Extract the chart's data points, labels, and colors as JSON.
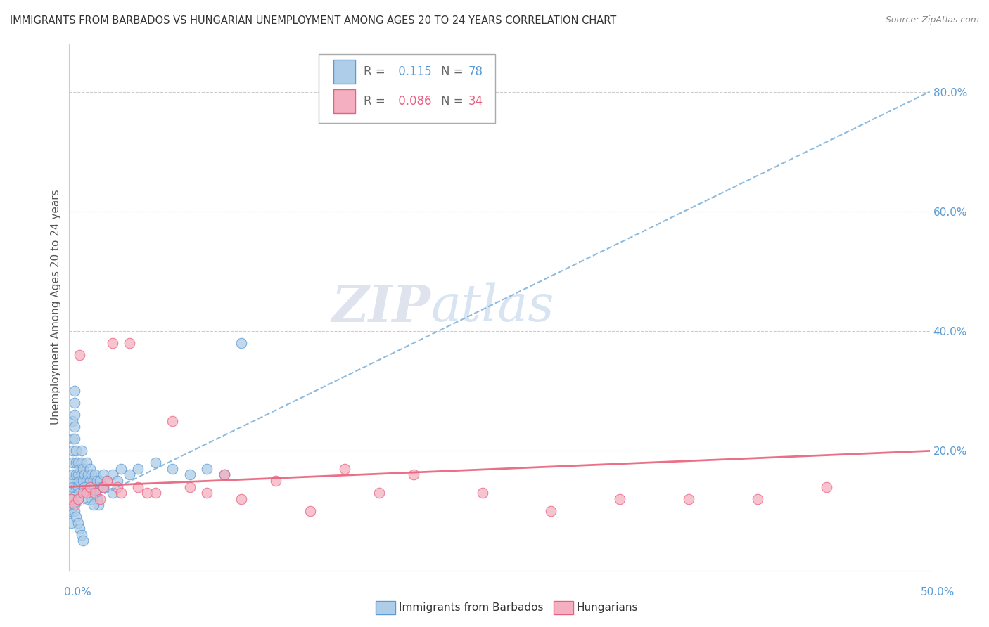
{
  "title": "IMMIGRANTS FROM BARBADOS VS HUNGARIAN UNEMPLOYMENT AMONG AGES 20 TO 24 YEARS CORRELATION CHART",
  "source": "Source: ZipAtlas.com",
  "ylabel": "Unemployment Among Ages 20 to 24 years",
  "ylabel_right_ticks": [
    "80.0%",
    "60.0%",
    "40.0%",
    "20.0%"
  ],
  "ylabel_right_vals": [
    0.8,
    0.6,
    0.4,
    0.2
  ],
  "legend_blue_label": "Immigrants from Barbados",
  "legend_pink_label": "Hungarians",
  "blue_color": "#aecde8",
  "pink_color": "#f4afc0",
  "blue_edge_color": "#5b9bd5",
  "pink_edge_color": "#e86080",
  "blue_trend_color": "#7ab0d8",
  "pink_trend_color": "#e8607a",
  "xlim": [
    0.0,
    0.5
  ],
  "ylim": [
    0.0,
    0.88
  ],
  "blue_scatter_x": [
    0.001,
    0.001,
    0.001,
    0.001,
    0.001,
    0.001,
    0.002,
    0.002,
    0.002,
    0.002,
    0.002,
    0.002,
    0.003,
    0.003,
    0.003,
    0.003,
    0.003,
    0.004,
    0.004,
    0.004,
    0.004,
    0.005,
    0.005,
    0.005,
    0.005,
    0.006,
    0.006,
    0.006,
    0.007,
    0.007,
    0.007,
    0.008,
    0.008,
    0.009,
    0.009,
    0.01,
    0.01,
    0.011,
    0.012,
    0.012,
    0.013,
    0.013,
    0.014,
    0.015,
    0.016,
    0.017,
    0.018,
    0.019,
    0.02,
    0.022,
    0.025,
    0.028,
    0.03,
    0.035,
    0.04,
    0.05,
    0.06,
    0.07,
    0.08,
    0.09,
    0.1,
    0.015,
    0.016,
    0.017,
    0.003,
    0.004,
    0.005,
    0.006,
    0.007,
    0.008,
    0.009,
    0.01,
    0.011,
    0.012,
    0.013,
    0.014,
    0.02,
    0.025
  ],
  "blue_scatter_y": [
    0.15,
    0.13,
    0.12,
    0.11,
    0.1,
    0.08,
    0.25,
    0.22,
    0.2,
    0.18,
    0.16,
    0.14,
    0.3,
    0.28,
    0.26,
    0.24,
    0.22,
    0.2,
    0.18,
    0.16,
    0.14,
    0.18,
    0.16,
    0.14,
    0.12,
    0.17,
    0.15,
    0.13,
    0.2,
    0.18,
    0.16,
    0.17,
    0.15,
    0.16,
    0.14,
    0.18,
    0.15,
    0.16,
    0.17,
    0.15,
    0.16,
    0.14,
    0.15,
    0.16,
    0.15,
    0.14,
    0.15,
    0.14,
    0.16,
    0.15,
    0.16,
    0.15,
    0.17,
    0.16,
    0.17,
    0.18,
    0.17,
    0.16,
    0.17,
    0.16,
    0.38,
    0.13,
    0.12,
    0.11,
    0.1,
    0.09,
    0.08,
    0.07,
    0.06,
    0.05,
    0.14,
    0.13,
    0.12,
    0.13,
    0.12,
    0.11,
    0.14,
    0.13
  ],
  "pink_scatter_x": [
    0.001,
    0.003,
    0.005,
    0.006,
    0.008,
    0.01,
    0.012,
    0.015,
    0.018,
    0.02,
    0.022,
    0.025,
    0.028,
    0.03,
    0.035,
    0.04,
    0.045,
    0.05,
    0.06,
    0.07,
    0.08,
    0.09,
    0.1,
    0.12,
    0.14,
    0.16,
    0.18,
    0.2,
    0.24,
    0.28,
    0.32,
    0.36,
    0.4,
    0.44
  ],
  "pink_scatter_y": [
    0.12,
    0.11,
    0.12,
    0.36,
    0.13,
    0.13,
    0.14,
    0.13,
    0.12,
    0.14,
    0.15,
    0.38,
    0.14,
    0.13,
    0.38,
    0.14,
    0.13,
    0.13,
    0.25,
    0.14,
    0.13,
    0.16,
    0.12,
    0.15,
    0.1,
    0.17,
    0.13,
    0.16,
    0.13,
    0.1,
    0.12,
    0.12,
    0.12,
    0.14
  ]
}
